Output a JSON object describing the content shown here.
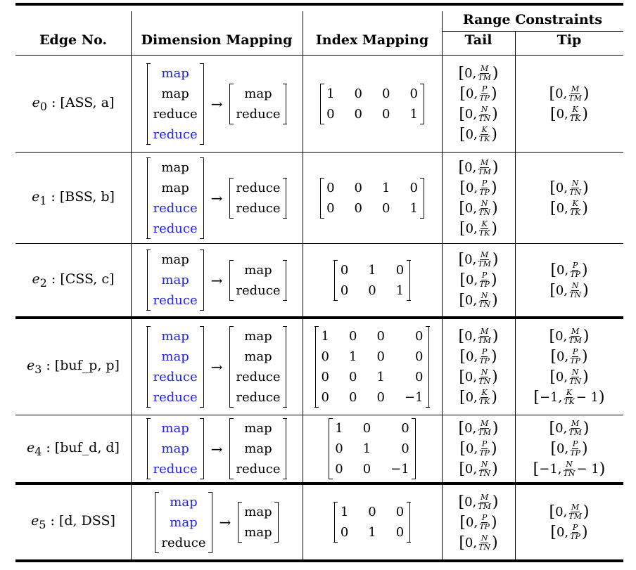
{
  "headers": {
    "edge_no": "Edge No.",
    "dimension_mapping": "Dimension Mapping",
    "index_mapping": "Index Mapping",
    "range_constraints": "Range Constraints",
    "tail": "Tail",
    "tip": "Tip"
  },
  "arrow": "→",
  "colors": {
    "highlight": "#2323e6",
    "text": "#000000"
  },
  "rows": [
    {
      "edge_sub": "0",
      "edge_args": "[ASS, a]",
      "src": [
        {
          "t": "map",
          "hl": true
        },
        {
          "t": "map",
          "hl": false
        },
        {
          "t": "reduce",
          "hl": false
        },
        {
          "t": "reduce",
          "hl": true
        }
      ],
      "dst": [
        {
          "t": "map",
          "hl": false
        },
        {
          "t": "reduce",
          "hl": false
        }
      ],
      "matrix": [
        [
          "1",
          "0",
          "0",
          "0"
        ],
        [
          "0",
          "0",
          "0",
          "1"
        ]
      ],
      "tail": [
        [
          "0",
          "M",
          "TM",
          ""
        ],
        [
          "0",
          "P",
          "TP",
          ""
        ],
        [
          "0",
          "N",
          "TN",
          ""
        ],
        [
          "0",
          "K",
          "TK",
          ""
        ]
      ],
      "tip": [
        [
          "0",
          "M",
          "TM",
          ""
        ],
        [
          "0",
          "K",
          "TK",
          ""
        ]
      ]
    },
    {
      "edge_sub": "1",
      "edge_args": "[BSS, b]",
      "src": [
        {
          "t": "map",
          "hl": false
        },
        {
          "t": "map",
          "hl": false
        },
        {
          "t": "reduce",
          "hl": true
        },
        {
          "t": "reduce",
          "hl": true
        }
      ],
      "dst": [
        {
          "t": "reduce",
          "hl": false
        },
        {
          "t": "reduce",
          "hl": false
        }
      ],
      "matrix": [
        [
          "0",
          "0",
          "1",
          "0"
        ],
        [
          "0",
          "0",
          "0",
          "1"
        ]
      ],
      "tail": [
        [
          "0",
          "M",
          "TM",
          ""
        ],
        [
          "0",
          "P",
          "TP",
          ""
        ],
        [
          "0",
          "N",
          "TN",
          ""
        ],
        [
          "0",
          "K",
          "TK",
          ""
        ]
      ],
      "tip": [
        [
          "0",
          "N",
          "TN",
          ""
        ],
        [
          "0",
          "K",
          "TK",
          ""
        ]
      ]
    },
    {
      "edge_sub": "2",
      "edge_args": "[CSS, c]",
      "src": [
        {
          "t": "map",
          "hl": false
        },
        {
          "t": "map",
          "hl": true
        },
        {
          "t": "reduce",
          "hl": true
        }
      ],
      "dst": [
        {
          "t": "map",
          "hl": false
        },
        {
          "t": "reduce",
          "hl": false
        }
      ],
      "matrix": [
        [
          "0",
          "1",
          "0"
        ],
        [
          "0",
          "0",
          "1"
        ]
      ],
      "tail": [
        [
          "0",
          "M",
          "TM",
          ""
        ],
        [
          "0",
          "P",
          "TP",
          ""
        ],
        [
          "0",
          "N",
          "TN",
          ""
        ]
      ],
      "tip": [
        [
          "0",
          "P",
          "TP",
          ""
        ],
        [
          "0",
          "N",
          "TN",
          ""
        ]
      ]
    },
    {
      "edge_sub": "3",
      "edge_args": "[buf_p, p]",
      "src": [
        {
          "t": "map",
          "hl": true
        },
        {
          "t": "map",
          "hl": true
        },
        {
          "t": "reduce",
          "hl": true
        },
        {
          "t": "reduce",
          "hl": true
        }
      ],
      "dst": [
        {
          "t": "map",
          "hl": false
        },
        {
          "t": "map",
          "hl": false
        },
        {
          "t": "reduce",
          "hl": false
        },
        {
          "t": "reduce",
          "hl": false
        }
      ],
      "matrix": [
        [
          "1",
          "0",
          "0",
          "0"
        ],
        [
          "0",
          "1",
          "0",
          "0"
        ],
        [
          "0",
          "0",
          "1",
          "0"
        ],
        [
          "0",
          "0",
          "0",
          "−1"
        ]
      ],
      "tail": [
        [
          "0",
          "M",
          "TM",
          ""
        ],
        [
          "0",
          "P",
          "TP",
          ""
        ],
        [
          "0",
          "N",
          "TN",
          ""
        ],
        [
          "0",
          "K",
          "TK",
          ""
        ]
      ],
      "tip": [
        [
          "0",
          "M",
          "TM",
          ""
        ],
        [
          "0",
          "P",
          "TP",
          ""
        ],
        [
          "0",
          "N",
          "TN",
          ""
        ],
        [
          "−1",
          "K",
          "TK",
          " − 1"
        ]
      ]
    },
    {
      "edge_sub": "4",
      "edge_args": "[buf_d, d]",
      "src": [
        {
          "t": "map",
          "hl": true
        },
        {
          "t": "map",
          "hl": true
        },
        {
          "t": "reduce",
          "hl": true
        }
      ],
      "dst": [
        {
          "t": "map",
          "hl": false
        },
        {
          "t": "map",
          "hl": false
        },
        {
          "t": "reduce",
          "hl": false
        }
      ],
      "matrix": [
        [
          "1",
          "0",
          "0"
        ],
        [
          "0",
          "1",
          "0"
        ],
        [
          "0",
          "0",
          "−1"
        ]
      ],
      "tail": [
        [
          "0",
          "M",
          "TM",
          ""
        ],
        [
          "0",
          "P",
          "TP",
          ""
        ],
        [
          "0",
          "N",
          "TN",
          ""
        ]
      ],
      "tip": [
        [
          "0",
          "M",
          "TM",
          ""
        ],
        [
          "0",
          "P",
          "TP",
          ""
        ],
        [
          "−1",
          "N",
          "TN",
          " − 1"
        ]
      ]
    },
    {
      "edge_sub": "5",
      "edge_args": "[d, DSS]",
      "src": [
        {
          "t": "map",
          "hl": true
        },
        {
          "t": "map",
          "hl": true
        },
        {
          "t": "reduce",
          "hl": false
        }
      ],
      "dst": [
        {
          "t": "map",
          "hl": false
        },
        {
          "t": "map",
          "hl": false
        }
      ],
      "matrix": [
        [
          "1",
          "0",
          "0"
        ],
        [
          "0",
          "1",
          "0"
        ]
      ],
      "tail": [
        [
          "0",
          "M",
          "TM",
          ""
        ],
        [
          "0",
          "P",
          "TP",
          ""
        ],
        [
          "0",
          "N",
          "TN",
          ""
        ]
      ],
      "tip": [
        [
          "0",
          "M",
          "TM",
          ""
        ],
        [
          "0",
          "P",
          "TP",
          ""
        ]
      ]
    }
  ]
}
